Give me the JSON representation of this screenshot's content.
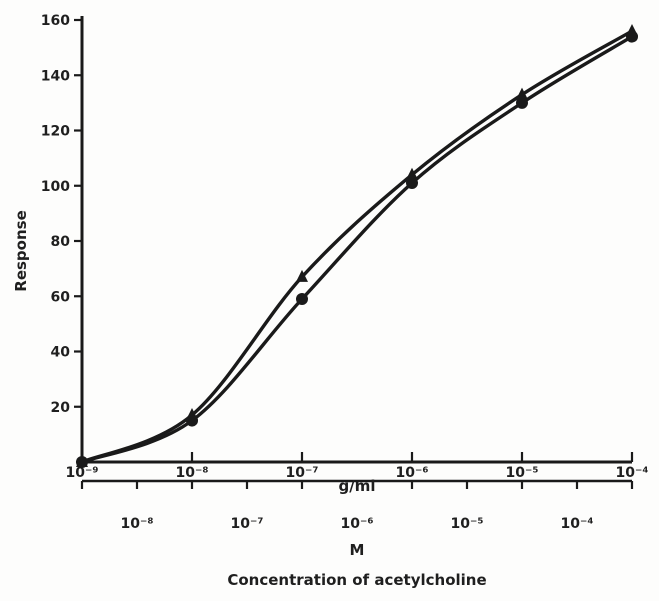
{
  "chart_data": {
    "type": "line",
    "title": "",
    "ylabel": "Response",
    "xlabel": "Concentration of acetylcholine",
    "ylim": [
      0,
      160
    ],
    "yticks": [
      "20",
      "40",
      "60",
      "80",
      "100",
      "120",
      "140",
      "160"
    ],
    "x_scale": "log",
    "xaxis_top": {
      "unit_label": "g/ml",
      "ticks": [
        "10⁻⁹",
        "10⁻⁸",
        "10⁻⁷",
        "10⁻⁶",
        "10⁻⁵",
        "10⁻⁴"
      ],
      "xlim_log10": [
        -9,
        -4
      ]
    },
    "xaxis_bottom": {
      "unit_label": "M",
      "ticks": [
        "10⁻⁸",
        "10⁻⁷",
        "10⁻⁶",
        "10⁻⁵",
        "10⁻⁴"
      ]
    },
    "series": [
      {
        "x_log10": [
          -9,
          -8,
          -7,
          -6,
          -5,
          -4
        ],
        "y": [
          0,
          17,
          67,
          104,
          133,
          156
        ]
      },
      {
        "x_log10": [
          -9,
          -8,
          -7,
          -6,
          -5,
          -4
        ],
        "y": [
          0,
          15,
          59,
          101,
          130,
          154
        ]
      }
    ],
    "colors": {
      "line": "#1a1a1a",
      "text": "#1f1f1f"
    },
    "grid": false,
    "legend": "none"
  }
}
